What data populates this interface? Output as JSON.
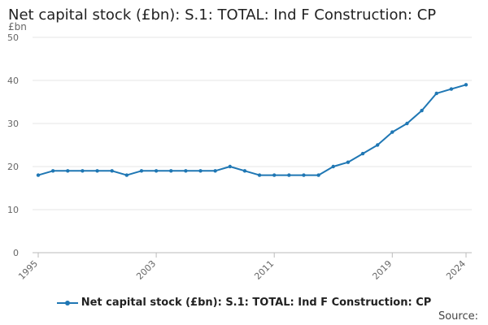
{
  "chart_data": {
    "type": "line",
    "title": "Net capital stock (£bn): S.1: TOTAL: Ind F Construction: CP",
    "unit_label": "£bn",
    "ylim": [
      0,
      50
    ],
    "yticks": [
      0,
      10,
      20,
      30,
      40,
      50
    ],
    "xticks": [
      1995,
      2003,
      2011,
      2019,
      2024
    ],
    "x": [
      1995,
      1996,
      1997,
      1998,
      1999,
      2000,
      2001,
      2002,
      2003,
      2004,
      2005,
      2006,
      2007,
      2008,
      2009,
      2010,
      2011,
      2012,
      2013,
      2014,
      2015,
      2016,
      2017,
      2018,
      2019,
      2020,
      2021,
      2022,
      2023,
      2024
    ],
    "series": [
      {
        "name": "Net capital stock (£bn): S.1: TOTAL: Ind F Construction: CP",
        "values": [
          18,
          19,
          19,
          19,
          19,
          19,
          18,
          19,
          19,
          19,
          19,
          19,
          19,
          20,
          19,
          18,
          18,
          18,
          18,
          18,
          20,
          21,
          23,
          25,
          28,
          30,
          33,
          37,
          38,
          39
        ]
      }
    ],
    "grid": true,
    "legend_position": "bottom",
    "line_color": "#1f77b4",
    "source_label": "Source:"
  }
}
